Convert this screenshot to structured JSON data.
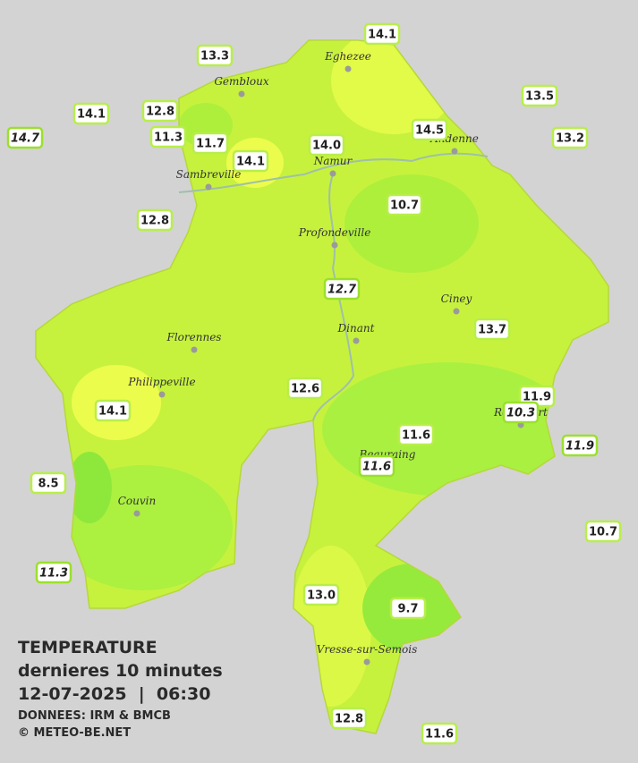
{
  "legend": {
    "title": "TEMPERATURE",
    "subtitle": "dernieres 10 minutes",
    "datetime": "12-07-2025  |  06:30",
    "source": "DONNEES: IRM & BMCB",
    "copyright": "© METEO-BE.NET"
  },
  "towns": [
    {
      "name": "Eghezee"
    },
    {
      "name": "Gembloux"
    },
    {
      "name": "Andenne"
    },
    {
      "name": "Namur"
    },
    {
      "name": "Sambreville"
    },
    {
      "name": "Profondeville"
    },
    {
      "name": "Ciney"
    },
    {
      "name": "Dinant"
    },
    {
      "name": "Florennes"
    },
    {
      "name": "Philippeville"
    },
    {
      "name": "Rochefort"
    },
    {
      "name": "Beauraing"
    },
    {
      "name": "Couvin"
    },
    {
      "name": "Vresse-sur-Semois"
    }
  ],
  "stations": [
    {
      "value": "14.1",
      "italic": false
    },
    {
      "value": "13.3",
      "italic": false
    },
    {
      "value": "14.1",
      "italic": false
    },
    {
      "value": "12.8",
      "italic": false
    },
    {
      "value": "14.7",
      "italic": true
    },
    {
      "value": "11.3",
      "italic": false
    },
    {
      "value": "11.7",
      "italic": false
    },
    {
      "value": "14.1",
      "italic": false
    },
    {
      "value": "14.0",
      "italic": false
    },
    {
      "value": "14.5",
      "italic": false
    },
    {
      "value": "13.5",
      "italic": false
    },
    {
      "value": "13.2",
      "italic": false
    },
    {
      "value": "12.8",
      "italic": false
    },
    {
      "value": "10.7",
      "italic": false
    },
    {
      "value": "12.7",
      "italic": true
    },
    {
      "value": "13.7",
      "italic": false
    },
    {
      "value": "12.6",
      "italic": false
    },
    {
      "value": "14.1",
      "italic": false
    },
    {
      "value": "11.9",
      "italic": false
    },
    {
      "value": "10.3",
      "italic": true
    },
    {
      "value": "11.9",
      "italic": true
    },
    {
      "value": "11.6",
      "italic": false
    },
    {
      "value": "11.6",
      "italic": true
    },
    {
      "value": "8.5",
      "italic": false
    },
    {
      "value": "10.7",
      "italic": false
    },
    {
      "value": "11.3",
      "italic": true
    },
    {
      "value": "13.0",
      "italic": false
    },
    {
      "value": "9.7",
      "italic": false
    },
    {
      "value": "12.8",
      "italic": false
    },
    {
      "value": "11.6",
      "italic": false
    }
  ]
}
